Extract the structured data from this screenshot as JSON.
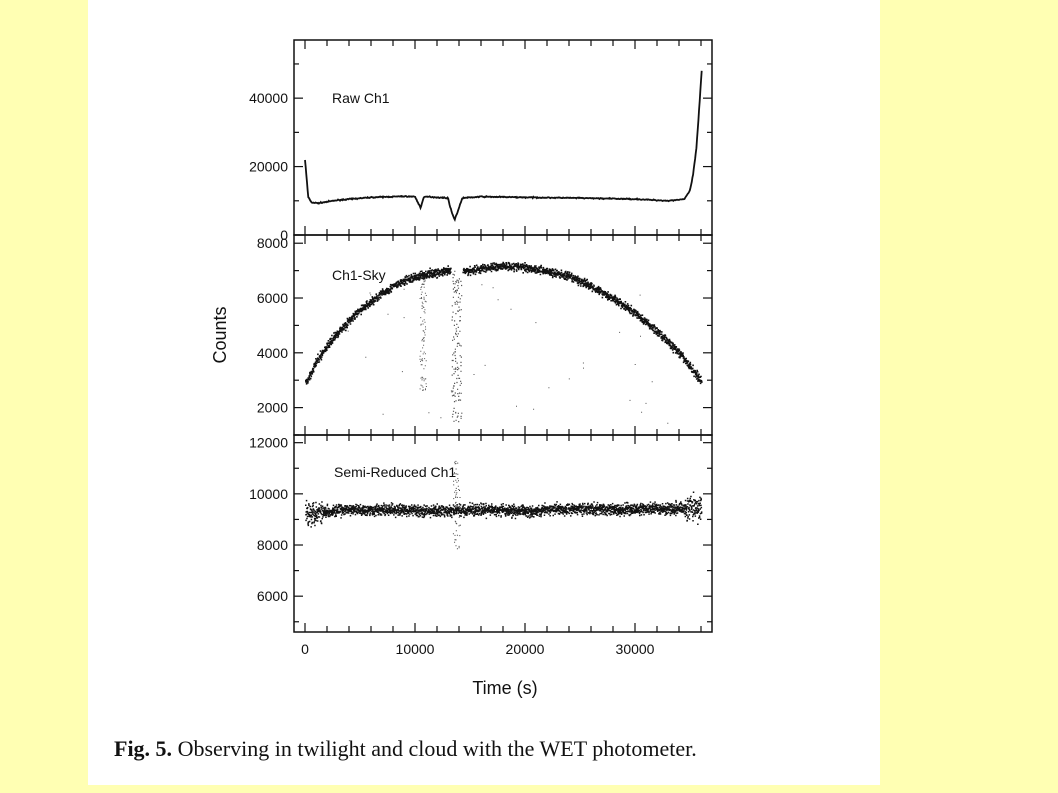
{
  "figure": {
    "caption_label": "Fig. 5.",
    "caption_text": "Observing in twilight and cloud with the WET photometer."
  },
  "colors": {
    "background": "#ffffb3",
    "paper": "#ffffff",
    "ink": "#111111"
  },
  "chart_data": [
    {
      "type": "line",
      "panel_label": "Raw Ch1",
      "xlabel": "",
      "ylabel": "",
      "xlim": [
        -1000,
        37000
      ],
      "ylim": [
        0,
        57000
      ],
      "yticks": [
        0,
        20000,
        40000
      ],
      "series": [
        {
          "x": [
            0,
            300,
            600,
            1200,
            3000,
            6000,
            9000,
            10000,
            10500,
            10800,
            11100,
            12000,
            13000,
            13300,
            13600,
            13900,
            14300,
            16000,
            20000,
            25000,
            30000,
            33000,
            34500,
            35000,
            35300,
            35600,
            35900,
            36100
          ],
          "y": [
            22000,
            11000,
            9500,
            9300,
            10200,
            11000,
            11300,
            11200,
            8000,
            11000,
            11200,
            11000,
            10800,
            7000,
            4500,
            7000,
            10800,
            11200,
            11000,
            10800,
            10500,
            10000,
            10500,
            13000,
            18000,
            26000,
            40000,
            50000
          ]
        }
      ]
    },
    {
      "type": "scatter",
      "panel_label": "Ch1-Sky",
      "xlabel": "",
      "ylabel": "Counts",
      "xlim": [
        -1000,
        37000
      ],
      "ylim": [
        1000,
        8300
      ],
      "yticks": [
        2000,
        4000,
        6000,
        8000
      ],
      "series": [
        {
          "x": [
            0,
            1000,
            2000,
            3000,
            4000,
            5000,
            6000,
            7000,
            8000,
            9000,
            10000,
            11000,
            12000,
            13000,
            14500,
            16000,
            18000,
            20000,
            22000,
            24000,
            26000,
            28000,
            30000,
            32000,
            34000,
            35000,
            36000
          ],
          "y": [
            2900,
            3700,
            4300,
            4800,
            5200,
            5600,
            5900,
            6200,
            6450,
            6650,
            6800,
            6900,
            6950,
            7000,
            7000,
            7100,
            7200,
            7150,
            7000,
            6800,
            6450,
            6000,
            5450,
            4800,
            4000,
            3500,
            3000
          ]
        }
      ]
    },
    {
      "type": "scatter",
      "panel_label": "Semi-Reduced Ch1",
      "xlabel": "Time (s)",
      "ylabel": "",
      "xlim": [
        -1000,
        37000
      ],
      "ylim": [
        4600,
        12300
      ],
      "yticks": [
        6000,
        8000,
        10000,
        12000
      ],
      "xticks": [
        0,
        10000,
        20000,
        30000
      ],
      "series": [
        {
          "x": [
            0,
            4000,
            8000,
            12000,
            16000,
            20000,
            24000,
            28000,
            32000,
            36000
          ],
          "y": [
            9300,
            9400,
            9400,
            9350,
            9400,
            9350,
            9450,
            9400,
            9450,
            9500
          ]
        }
      ]
    }
  ]
}
